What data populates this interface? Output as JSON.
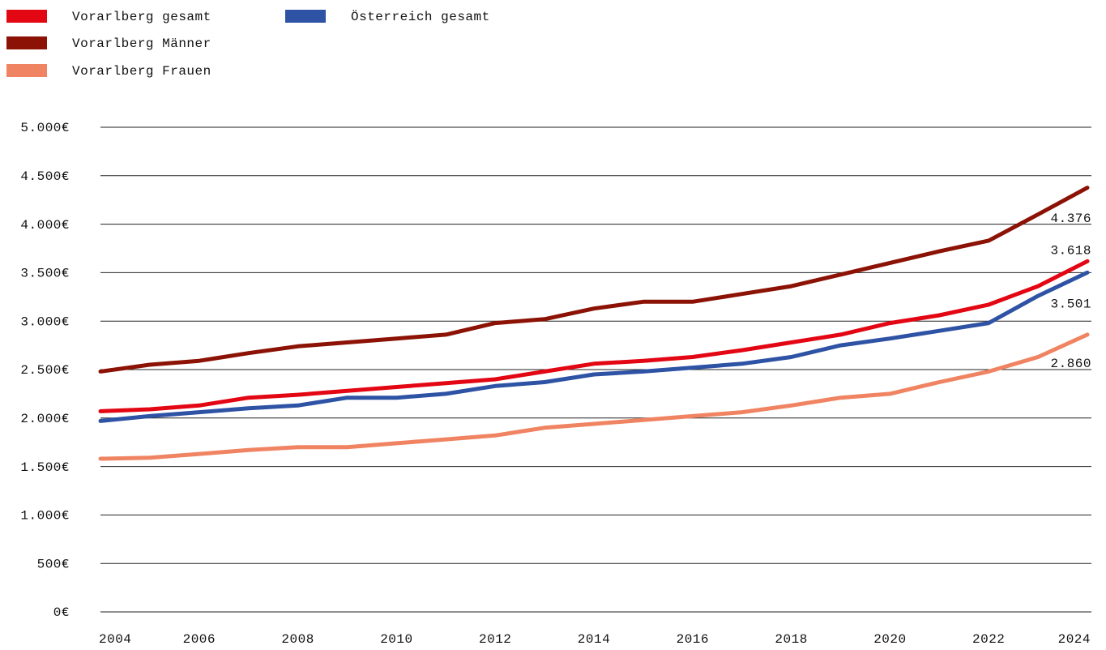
{
  "chart_data": {
    "type": "line",
    "x": [
      2004,
      2005,
      2006,
      2007,
      2008,
      2009,
      2010,
      2011,
      2012,
      2013,
      2014,
      2015,
      2016,
      2017,
      2018,
      2019,
      2020,
      2021,
      2022,
      2023,
      2024
    ],
    "series": [
      {
        "name": "Vorarlberg gesamt",
        "color": "#e30613",
        "values": [
          2070,
          2090,
          2130,
          2210,
          2240,
          2280,
          2320,
          2360,
          2400,
          2480,
          2560,
          2590,
          2630,
          2700,
          2780,
          2860,
          2980,
          3060,
          3170,
          3360,
          3618
        ],
        "value_labels": [
          null,
          null,
          null,
          null,
          null,
          null,
          null,
          null,
          null,
          null,
          null,
          null,
          null,
          null,
          null,
          null,
          null,
          null,
          null,
          null,
          "3.618"
        ]
      },
      {
        "name": "Vorarlberg Männer",
        "color": "#8b1204",
        "values": [
          2480,
          2550,
          2590,
          2670,
          2740,
          2780,
          2820,
          2860,
          2980,
          3020,
          3130,
          3200,
          3200,
          3280,
          3360,
          3480,
          3600,
          3720,
          3830,
          4100,
          4376
        ],
        "value_labels": [
          null,
          null,
          null,
          null,
          null,
          null,
          null,
          null,
          null,
          null,
          null,
          null,
          null,
          null,
          null,
          null,
          null,
          null,
          null,
          null,
          "4.376"
        ]
      },
      {
        "name": "Vorarlberg Frauen",
        "color": "#f08462",
        "values": [
          1580,
          1590,
          1630,
          1670,
          1700,
          1700,
          1740,
          1780,
          1820,
          1900,
          1940,
          1980,
          2020,
          2060,
          2130,
          2210,
          2250,
          2370,
          2480,
          2630,
          2860
        ],
        "value_labels": [
          null,
          null,
          null,
          null,
          null,
          null,
          null,
          null,
          null,
          null,
          null,
          null,
          null,
          null,
          null,
          null,
          null,
          null,
          null,
          null,
          "2.860"
        ]
      },
      {
        "name": "Österreich gesamt",
        "color": "#2e52a4",
        "values": [
          1970,
          2020,
          2060,
          2100,
          2130,
          2210,
          2210,
          2250,
          2330,
          2370,
          2450,
          2480,
          2520,
          2560,
          2630,
          2750,
          2820,
          2900,
          2980,
          3260,
          3501
        ],
        "value_labels": [
          null,
          null,
          null,
          null,
          null,
          null,
          null,
          null,
          null,
          null,
          null,
          null,
          null,
          null,
          null,
          null,
          null,
          null,
          null,
          null,
          "3.501"
        ]
      }
    ],
    "xlim": [
      2004,
      2024
    ],
    "xticks": [
      2004,
      2006,
      2008,
      2010,
      2012,
      2014,
      2016,
      2018,
      2020,
      2022,
      2024
    ],
    "ylim": [
      0,
      5000
    ],
    "yticks": [
      {
        "value": 0,
        "label": "0€"
      },
      {
        "value": 500,
        "label": "500€"
      },
      {
        "value": 1000,
        "label": "1.000€"
      },
      {
        "value": 1500,
        "label": "1.500€"
      },
      {
        "value": 2000,
        "label": "2.000€"
      },
      {
        "value": 2500,
        "label": "2.500€"
      },
      {
        "value": 3000,
        "label": "3.000€"
      },
      {
        "value": 3500,
        "label": "3.500€"
      },
      {
        "value": 4000,
        "label": "4.000€"
      },
      {
        "value": 4500,
        "label": "4.500€"
      },
      {
        "value": 5000,
        "label": "5.000€"
      }
    ],
    "grid": true,
    "legend": "top-left"
  }
}
